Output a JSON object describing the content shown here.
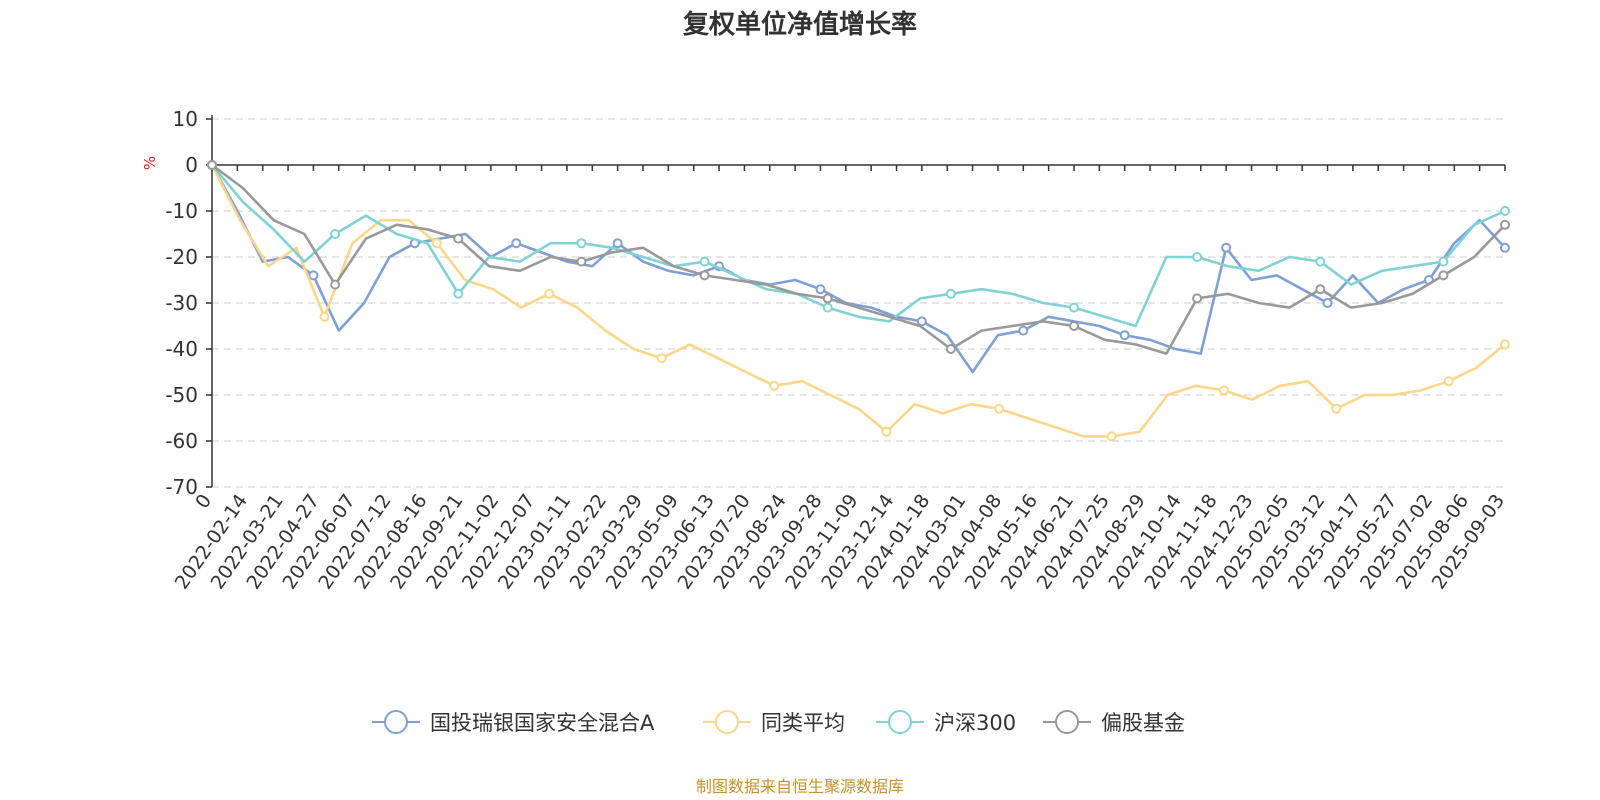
{
  "chart_data": {
    "type": "line",
    "title": "复权单位净值增长率",
    "y_unit": "%",
    "ylim": [
      -70,
      10
    ],
    "y_ticks": [
      10,
      0,
      -10,
      -20,
      -30,
      -40,
      -50,
      -60,
      -70
    ],
    "x_origin_label": "0",
    "x_tick_labels": [
      "2022-02-14",
      "2022-03-21",
      "2022-04-27",
      "2022-06-07",
      "2022-07-12",
      "2022-08-16",
      "2022-09-21",
      "2022-11-02",
      "2022-12-07",
      "2023-01-11",
      "2023-02-22",
      "2023-03-29",
      "2023-05-09",
      "2023-06-13",
      "2023-07-20",
      "2023-08-24",
      "2023-09-28",
      "2023-11-09",
      "2023-12-14",
      "2024-01-18",
      "2024-03-01",
      "2024-04-08",
      "2024-05-16",
      "2024-06-21",
      "2024-07-25",
      "2024-08-29",
      "2024-10-14",
      "2024-11-18",
      "2024-12-23",
      "2025-02-05",
      "2025-03-12",
      "2025-04-17",
      "2025-05-27",
      "2025-07-02",
      "2025-08-06",
      "2025-09-03"
    ],
    "grid": true,
    "legend_position": "bottom",
    "series": [
      {
        "name": "国投瑞银国家安全混合A",
        "color": "#7f9fd6",
        "values": [
          0,
          -10,
          -21,
          -20,
          -24,
          -36,
          -30,
          -20,
          -17,
          -16,
          -15,
          -20,
          -17,
          -19,
          -21,
          -22,
          -17,
          -21,
          -23,
          -24,
          -22,
          -25,
          -26,
          -25,
          -27,
          -30,
          -31,
          -33,
          -34,
          -37,
          -45,
          -37,
          -36,
          -33,
          -34,
          -35,
          -37,
          -38,
          -40,
          -41,
          -18,
          -25,
          -24,
          -27,
          -30,
          -24,
          -30,
          -27,
          -25,
          -17,
          -12,
          -18
        ]
      },
      {
        "name": "同类平均",
        "color": "#fcd68a",
        "values": [
          0,
          -12,
          -22,
          -18,
          -33,
          -17,
          -12,
          -12,
          -17,
          -25,
          -27,
          -31,
          -28,
          -31,
          -36,
          -40,
          -42,
          -39,
          -42,
          -45,
          -48,
          -47,
          -50,
          -53,
          -58,
          -52,
          -54,
          -52,
          -53,
          -55,
          -57,
          -59,
          -59,
          -58,
          -50,
          -48,
          -49,
          -51,
          -48,
          -47,
          -53,
          -50,
          -50,
          -49,
          -47,
          -44,
          -39
        ]
      },
      {
        "name": "沪深300",
        "color": "#7fd3d4",
        "values": [
          0,
          -8,
          -14,
          -21,
          -15,
          -11,
          -15,
          -17,
          -28,
          -20,
          -21,
          -17,
          -17,
          -18,
          -20,
          -22,
          -21,
          -24,
          -27,
          -28,
          -31,
          -33,
          -34,
          -29,
          -28,
          -27,
          -28,
          -30,
          -31,
          -33,
          -35,
          -20,
          -20,
          -22,
          -23,
          -20,
          -21,
          -26,
          -23,
          -22,
          -21,
          -13,
          -10
        ]
      },
      {
        "name": "偏股基金",
        "color": "#999999",
        "values": [
          0,
          -5,
          -12,
          -15,
          -26,
          -16,
          -13,
          -14,
          -16,
          -22,
          -23,
          -20,
          -21,
          -19,
          -18,
          -22,
          -24,
          -25,
          -26,
          -28,
          -29,
          -31,
          -33,
          -35,
          -40,
          -36,
          -35,
          -34,
          -35,
          -38,
          -39,
          -41,
          -29,
          -28,
          -30,
          -31,
          -27,
          -31,
          -30,
          -28,
          -24,
          -20,
          -13
        ]
      }
    ]
  },
  "legend": {
    "items": [
      "国投瑞银国家安全混合A",
      "同类平均",
      "沪深300",
      "偏股基金"
    ]
  },
  "footer": {
    "source": "制图数据来自恒生聚源数据库"
  }
}
